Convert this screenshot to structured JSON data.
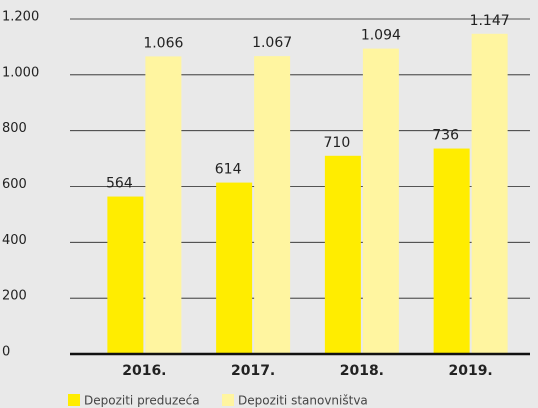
{
  "chart_data": {
    "type": "bar",
    "categories": [
      "2016.",
      "2017.",
      "2018.",
      "2019."
    ],
    "series": [
      {
        "name": "Depoziti preduzeća",
        "color": "#ffed00",
        "values": [
          564,
          614,
          710,
          736
        ],
        "value_labels": [
          "564",
          "614",
          "710",
          "736"
        ]
      },
      {
        "name": "Depoziti stanovništva",
        "color": "#fff5a0",
        "values": [
          1066,
          1067,
          1094,
          1147
        ],
        "value_labels": [
          "1.066",
          "1.067",
          "1.094",
          "1.147"
        ]
      }
    ],
    "ylim": [
      0,
      1200
    ],
    "yticks": [
      0,
      200,
      400,
      600,
      800,
      {
        "value": 1000,
        "label": "1.000"
      },
      {
        "value": 1200,
        "label": "1.200"
      }
    ],
    "grid": true,
    "legend": "bottom-left"
  }
}
